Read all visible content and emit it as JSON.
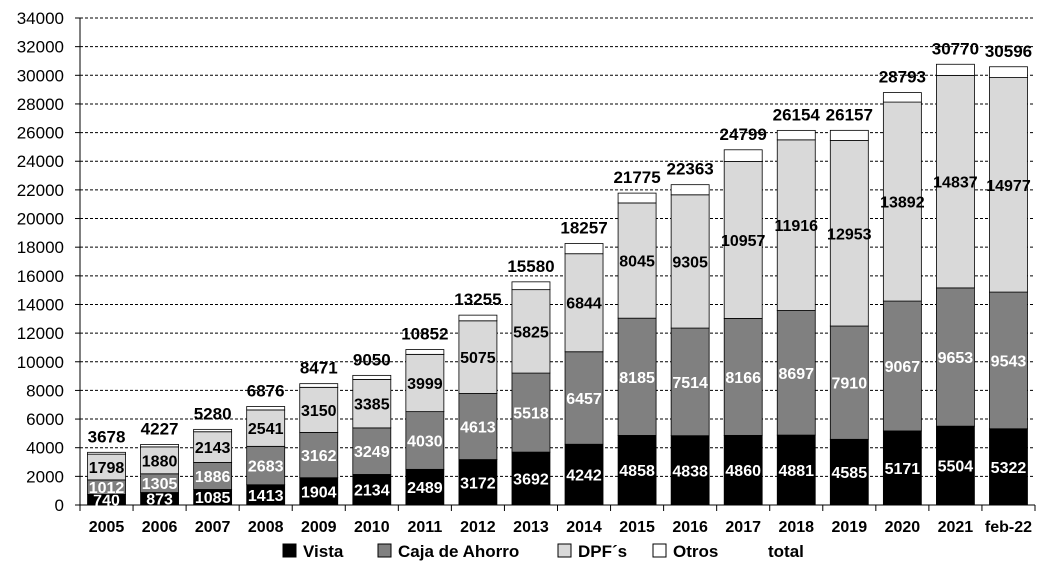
{
  "chart_data": {
    "type": "bar",
    "stacked": true,
    "title": "",
    "xlabel": "",
    "ylabel": "",
    "ylim": [
      0,
      34000
    ],
    "yticks": [
      0,
      2000,
      4000,
      6000,
      8000,
      10000,
      12000,
      14000,
      16000,
      18000,
      20000,
      22000,
      24000,
      26000,
      28000,
      30000,
      32000,
      34000
    ],
    "grid": true,
    "legend_position": "bottom",
    "categories": [
      "2005",
      "2006",
      "2007",
      "2008",
      "2009",
      "2010",
      "2011",
      "2012",
      "2013",
      "2014",
      "2015",
      "2016",
      "2017",
      "2018",
      "2019",
      "2020",
      "2021",
      "feb-22"
    ],
    "series": [
      {
        "name": "Vista",
        "color": "#000000",
        "label_color": "#ffffff",
        "values": [
          740,
          873,
          1085,
          1413,
          1904,
          2134,
          2489,
          3172,
          3692,
          4242,
          4858,
          4838,
          4860,
          4881,
          4585,
          5171,
          5504,
          5322
        ]
      },
      {
        "name": "Caja de Ahorro",
        "color": "#808080",
        "label_color": "#ffffff",
        "values": [
          1012,
          1305,
          1886,
          2683,
          3162,
          3249,
          4030,
          4613,
          5518,
          6457,
          8185,
          7514,
          8166,
          8697,
          7910,
          9067,
          9653,
          9543
        ]
      },
      {
        "name": "DPF´s",
        "color": "#d9d9d9",
        "label_color": "#000000",
        "values": [
          1798,
          1880,
          2143,
          2541,
          3150,
          3385,
          3999,
          5075,
          5825,
          6844,
          8045,
          9305,
          10957,
          11916,
          12953,
          13892,
          14837,
          14977
        ]
      },
      {
        "name": "Otros",
        "color": "#ffffff",
        "label_color": "#000000",
        "values": [
          128,
          169,
          166,
          239,
          255,
          282,
          334,
          395,
          545,
          714,
          687,
          706,
          816,
          660,
          709,
          663,
          776,
          754
        ]
      }
    ],
    "total": {
      "name": "total",
      "values": [
        3678,
        4227,
        5280,
        6876,
        8471,
        9050,
        10852,
        13255,
        15580,
        18257,
        21775,
        22363,
        24799,
        26154,
        26157,
        28793,
        30770,
        30596
      ]
    }
  }
}
